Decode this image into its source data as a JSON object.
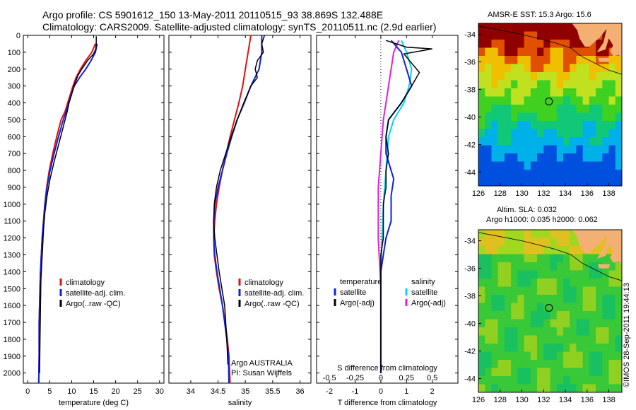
{
  "header": {
    "title_line1": "Argo profile: CS 5901612_150 13-May-2011 20110515_93 38.869S 132.488E",
    "title_line2": "Climatology: CARS2009. Satellite-adjusted climatology: synTS_20110511.nc (2.9d earlier)"
  },
  "colors": {
    "climatology": "#e01010",
    "satellite": "#1020e0",
    "argo": "#000000",
    "sat_salinity": "#00d8e8",
    "argo_salinity_adj": "#e020e0",
    "land": "#f4b072"
  },
  "map_sst": {
    "title": "AMSR-E SST: 15.3 Argo: 15.6",
    "x_ticks": [
      "126",
      "128",
      "130",
      "132",
      "134",
      "136",
      "138"
    ],
    "y_ticks": [
      "-34",
      "-36",
      "-38",
      "-40",
      "-42",
      "-44"
    ],
    "xlim": [
      126,
      139.2
    ],
    "ylim": [
      -45,
      -33.2
    ],
    "argo_position": {
      "lon": 132.488,
      "lat": -38.869
    }
  },
  "map_sla": {
    "title_line1": "Altim. SLA: 0.032",
    "title_line2": "Argo h1000: 0.035 h2000: 0.062",
    "x_ticks": [
      "126",
      "128",
      "130",
      "132",
      "134",
      "136",
      "138"
    ],
    "y_ticks": [
      "-34",
      "-36",
      "-38",
      "-40",
      "-42",
      "-44"
    ],
    "xlim": [
      126,
      139.2
    ],
    "ylim": [
      -45,
      -33.2
    ],
    "argo_position": {
      "lon": 132.488,
      "lat": -38.869
    }
  },
  "stamp": "©IMOS 28-Sep-2011 19:44:13",
  "chart_data": [
    {
      "type": "line",
      "xlabel": "temperature (deg C)",
      "ylabel": "",
      "xlim": [
        -1,
        31
      ],
      "ylim": [
        2060,
        0
      ],
      "x_ticks": [
        "0",
        "5",
        "10",
        "15",
        "20",
        "25",
        "30"
      ],
      "y_ticks": [
        "0",
        "100",
        "200",
        "300",
        "400",
        "500",
        "600",
        "700",
        "800",
        "900",
        "1000",
        "1100",
        "1200",
        "1300",
        "1400",
        "1500",
        "1600",
        "1700",
        "1800",
        "1900",
        "2000"
      ],
      "legend": [
        "climatology",
        "satellite-adj. clim.",
        "Argo(..raw -QC)"
      ],
      "series": [
        {
          "name": "climatology",
          "x": [
            15.4,
            14.6,
            13.2,
            12.0,
            11.0,
            10.3,
            9.7,
            9.1,
            8.5,
            7.6,
            6.6,
            5.7,
            4.9,
            4.3,
            3.9,
            3.6,
            3.3,
            3.1,
            2.9,
            2.8,
            2.6,
            2.6,
            2.5
          ],
          "y": [
            50,
            100,
            150,
            200,
            250,
            300,
            350,
            400,
            450,
            500,
            600,
            700,
            800,
            900,
            1000,
            1100,
            1200,
            1300,
            1400,
            1500,
            1700,
            1900,
            2060
          ]
        },
        {
          "name": "satellite-adj. clim.",
          "x": [
            15.8,
            15.4,
            14.4,
            13.2,
            11.8,
            10.6,
            9.9,
            9.3,
            8.8,
            8.1,
            7.0,
            6.0,
            5.1,
            4.4,
            3.9,
            3.6,
            3.3,
            3.1,
            2.9,
            2.8,
            2.6,
            2.6,
            2.5
          ],
          "y": [
            50,
            100,
            150,
            200,
            250,
            300,
            350,
            400,
            450,
            500,
            600,
            700,
            800,
            900,
            1000,
            1100,
            1200,
            1300,
            1400,
            1500,
            1700,
            1900,
            2060
          ]
        },
        {
          "name": "Argo(..raw -QC)",
          "x": [
            15.6,
            15.6,
            15.5,
            15.0,
            13.6,
            12.3,
            11.4,
            10.5,
            10.0,
            9.4,
            9.0,
            8.0,
            7.0,
            6.0,
            5.1,
            4.4,
            3.9,
            3.6,
            3.4,
            3.2,
            3.0,
            2.9,
            2.8,
            2.7
          ],
          "y": [
            5,
            50,
            80,
            110,
            150,
            200,
            240,
            300,
            350,
            400,
            450,
            550,
            650,
            750,
            850,
            950,
            1050,
            1150,
            1250,
            1350,
            1450,
            1600,
            1800,
            2000
          ]
        }
      ]
    },
    {
      "type": "line",
      "xlabel": "salinity",
      "ylabel": "",
      "xlim": [
        33.6,
        36.2
      ],
      "ylim": [
        2060,
        0
      ],
      "x_ticks": [
        "34",
        "34.5",
        "35",
        "35.5",
        "36"
      ],
      "legend": [
        "climatology",
        "satellite-adj. clim.",
        "Argo(..raw -QC)"
      ],
      "annotation_line1": "Argo AUSTRALIA",
      "annotation_line2": "PI: Susan Wijffels",
      "series": [
        {
          "name": "climatology",
          "x": [
            35.1,
            35.05,
            35.0,
            34.95,
            34.88,
            34.8,
            34.72,
            34.65,
            34.58,
            34.52,
            34.47,
            34.44,
            34.42,
            34.43,
            34.47,
            34.52,
            34.58,
            34.63,
            34.67,
            34.7,
            34.72
          ],
          "y": [
            0,
            100,
            200,
            300,
            400,
            500,
            600,
            700,
            800,
            900,
            1000,
            1100,
            1200,
            1300,
            1400,
            1500,
            1600,
            1700,
            1800,
            1900,
            2060
          ]
        },
        {
          "name": "satellite-adj. clim.",
          "x": [
            35.3,
            35.3,
            35.25,
            35.1,
            34.98,
            34.85,
            34.75,
            34.66,
            34.58,
            34.5,
            34.44,
            34.42,
            34.42,
            34.44,
            34.48,
            34.53,
            34.58,
            34.62,
            34.66,
            34.69,
            34.7
          ],
          "y": [
            0,
            100,
            200,
            300,
            400,
            500,
            600,
            700,
            800,
            900,
            1000,
            1100,
            1200,
            1300,
            1400,
            1500,
            1600,
            1700,
            1800,
            1900,
            2060
          ]
        },
        {
          "name": "Argo(..raw -QC)",
          "x": [
            35.35,
            35.3,
            35.33,
            35.22,
            35.18,
            35.22,
            35.1,
            34.97,
            34.85,
            34.74,
            34.64,
            34.54,
            34.47,
            34.43,
            34.42,
            34.44,
            34.48,
            34.52,
            34.57,
            34.62,
            34.66,
            34.68
          ],
          "y": [
            0,
            50,
            100,
            150,
            200,
            250,
            300,
            400,
            500,
            600,
            700,
            800,
            900,
            1000,
            1100,
            1200,
            1300,
            1400,
            1500,
            1600,
            1800,
            1950
          ]
        }
      ]
    },
    {
      "type": "line",
      "xlabel": "T difference from climatology",
      "x2label": "S difference from climatology",
      "ylabel": "",
      "xlim": [
        -2.5,
        3
      ],
      "ylim": [
        2060,
        0
      ],
      "x_ticks": [
        "-2",
        "-1",
        "0",
        "1",
        "2"
      ],
      "x2_ticks": [
        "-0.5",
        "-0.25",
        "0",
        "0.25",
        "0.5"
      ],
      "legend_temperature_title": "temperature",
      "legend_salinity_title": "salinity",
      "legend_temperature": [
        "satellite",
        "Argo(-adj)"
      ],
      "legend_salinity": [
        "satellite",
        "Argo(-adj)"
      ],
      "series": [
        {
          "name": "temperature satellite",
          "x": [
            0.4,
            0.8,
            1.0,
            1.2,
            0.8,
            0.3,
            0.2,
            0.2,
            0.3,
            0.5,
            0.4,
            0.4,
            0.2,
            0.1,
            0.0,
            0.0,
            0.0,
            0.0,
            0.0,
            0.0
          ],
          "y": [
            30,
            100,
            200,
            300,
            400,
            500,
            600,
            700,
            750,
            850,
            950,
            1100,
            1200,
            1300,
            1400,
            1500,
            1600,
            1700,
            1800,
            2000
          ]
        },
        {
          "name": "temperature Argo(-adj)",
          "x": [
            0.2,
            1.0,
            2.0,
            0.9,
            1.5,
            1.2,
            0.8,
            0.3,
            0.2,
            0.3,
            0.2,
            0.2,
            0.1,
            0.1,
            0.1,
            0.0,
            0.0,
            0.0,
            0.0
          ],
          "y": [
            30,
            70,
            80,
            110,
            220,
            300,
            400,
            500,
            600,
            700,
            800,
            900,
            1000,
            1100,
            1200,
            1300,
            1500,
            1800,
            2000
          ]
        },
        {
          "name": "salinity satellite",
          "x": [
            0.8,
            1.0,
            1.2,
            1.1,
            0.9,
            0.5,
            0.3,
            0.2,
            0.1,
            0.0,
            0.0
          ],
          "y": [
            30,
            100,
            200,
            300,
            400,
            500,
            600,
            800,
            1000,
            1400,
            2000
          ]
        },
        {
          "name": "salinity Argo(-adj)",
          "x": [
            0.7,
            0.5,
            0.4,
            0.3,
            0.2,
            0.1,
            0.0,
            -0.1,
            -0.1,
            0.0,
            0.0
          ],
          "y": [
            30,
            100,
            200,
            300,
            400,
            500,
            700,
            900,
            1200,
            1500,
            2000
          ]
        }
      ]
    }
  ]
}
